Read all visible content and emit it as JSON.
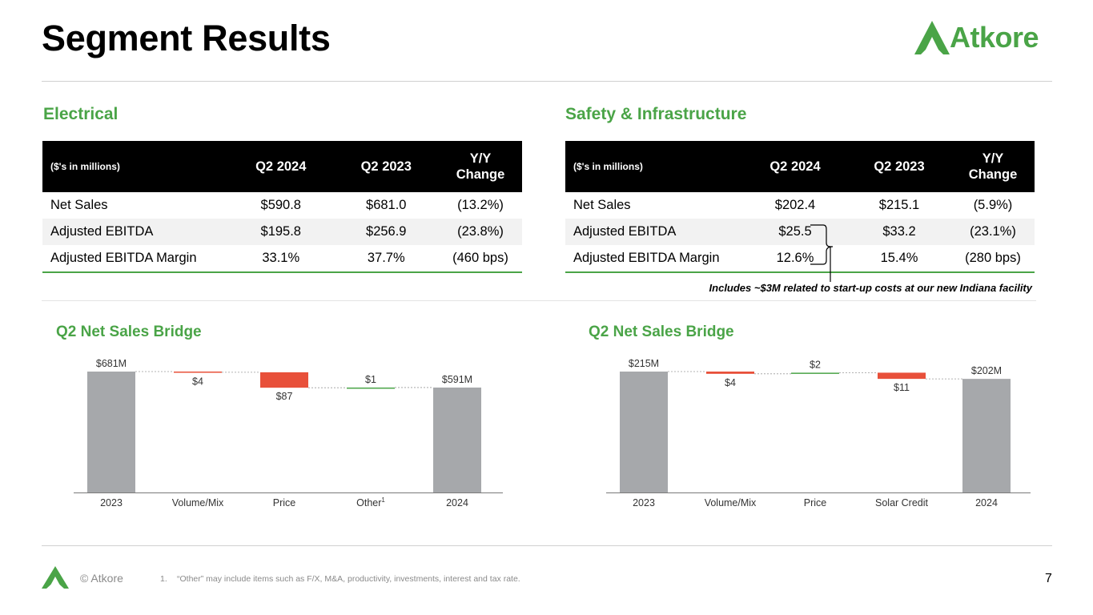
{
  "title": "Segment Results",
  "brand": {
    "name": "Atkore",
    "color": "#4aa447"
  },
  "electrical": {
    "title": "Electrical",
    "headers": [
      "($'s in millions)",
      "Q2 2024",
      "Q2 2023",
      "Y/Y Change"
    ],
    "rows": [
      [
        "Net Sales",
        "$590.8",
        "$681.0",
        "(13.2%)"
      ],
      [
        "Adjusted EBITDA",
        "$195.8",
        "$256.9",
        "(23.8%)"
      ],
      [
        "Adjusted EBITDA Margin",
        "33.1%",
        "37.7%",
        "(460 bps)"
      ]
    ]
  },
  "safety": {
    "title": "Safety & Infrastructure",
    "headers": [
      "($'s in millions)",
      "Q2 2024",
      "Q2 2023",
      "Y/Y Change"
    ],
    "rows": [
      [
        "Net Sales",
        "$202.4",
        "$215.1",
        "(5.9%)"
      ],
      [
        "Adjusted EBITDA",
        "$25.5",
        "$33.2",
        "(23.1%)"
      ],
      [
        "Adjusted EBITDA Margin",
        "12.6%",
        "15.4%",
        "(280 bps)"
      ]
    ],
    "note": "Includes ~$3M related to start-up costs at our new Indiana facility"
  },
  "chart_data": [
    {
      "type": "bar",
      "subtype": "waterfall",
      "title": "Q2 Net Sales Bridge",
      "categories": [
        "2023",
        "Volume/Mix",
        "Price",
        "Other",
        "2024"
      ],
      "category_superscripts": [
        "",
        "",
        "",
        "1",
        ""
      ],
      "values": [
        681,
        -4,
        -87,
        1,
        591
      ],
      "kinds": [
        "total",
        "decrease",
        "decrease",
        "increase",
        "total"
      ],
      "data_labels": [
        "$681M",
        "$4",
        "$87",
        "$1",
        "$591M"
      ],
      "ylim": [
        0,
        681
      ],
      "colors": {
        "total": "#a6a8ab",
        "decrease": "#e8503a",
        "increase": "#4aa447"
      }
    },
    {
      "type": "bar",
      "subtype": "waterfall",
      "title": "Q2 Net Sales Bridge",
      "categories": [
        "2023",
        "Volume/Mix",
        "Price",
        "Solar Credit",
        "2024"
      ],
      "category_superscripts": [
        "",
        "",
        "",
        "",
        ""
      ],
      "values": [
        215,
        -4,
        2,
        -11,
        202
      ],
      "kinds": [
        "total",
        "decrease",
        "increase",
        "decrease",
        "total"
      ],
      "data_labels": [
        "$215M",
        "$4",
        "$2",
        "$11",
        "$202M"
      ],
      "ylim": [
        0,
        215
      ],
      "colors": {
        "total": "#a6a8ab",
        "decrease": "#e8503a",
        "increase": "#4aa447"
      }
    }
  ],
  "footer": {
    "copyright": "© Atkore",
    "footnote_number": "1.",
    "footnote": "“Other” may include items such as F/X, M&A, productivity, investments, interest and tax rate.",
    "page_number": "7"
  }
}
